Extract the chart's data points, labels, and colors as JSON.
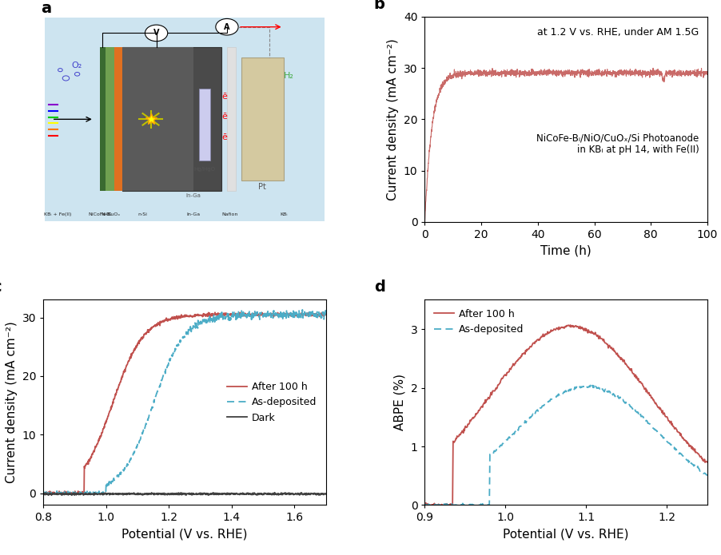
{
  "panel_b": {
    "annotation": "at 1.2 V vs. RHE, under AM 1.5G",
    "label": "NiCoFe-Bᵢ/NiO/CuOₓ/Si Photoanode\nin KBᵢ at pH 14, with Fe(II)",
    "xlabel": "Time (h)",
    "ylabel": "Current density (mA cm⁻²)",
    "xlim": [
      0,
      100
    ],
    "ylim": [
      0,
      40
    ],
    "yticks": [
      0,
      10,
      20,
      30,
      40
    ],
    "xticks": [
      0,
      20,
      40,
      60,
      80,
      100
    ],
    "line_color": "#c0504d",
    "stable_value": 29.0,
    "rise_time": 2.5,
    "noise_amp": 0.3
  },
  "panel_c": {
    "xlabel": "Potential (V vs. RHE)",
    "ylabel": "Current density (mA cm⁻²)",
    "xlim": [
      0.8,
      1.7
    ],
    "ylim": [
      -2,
      33
    ],
    "yticks": [
      0,
      10,
      20,
      30
    ],
    "xticks": [
      0.8,
      1.0,
      1.2,
      1.4,
      1.6
    ],
    "after100h_color": "#c0504d",
    "asdeposited_color": "#4bacc6",
    "dark_color": "#404040",
    "legend": [
      "After 100 h",
      "As-deposited",
      "Dark"
    ],
    "after100h_onset": 0.93,
    "after100h_half": 1.02,
    "asdeposited_onset": 1.0,
    "asdeposited_half": 1.15,
    "plateau": 30.5
  },
  "panel_d": {
    "xlabel": "Potential (V vs. RHE)",
    "ylabel": "ABPE (%)",
    "xlim": [
      0.9,
      1.25
    ],
    "ylim": [
      0,
      3.5
    ],
    "yticks": [
      0,
      1,
      2,
      3
    ],
    "xticks": [
      0.9,
      1.0,
      1.1,
      1.2
    ],
    "after100h_color": "#c0504d",
    "asdeposited_color": "#4bacc6",
    "legend": [
      "After 100 h",
      "As-deposited"
    ],
    "after100h_peak_x": 1.08,
    "after100h_peak_y": 3.05,
    "asdeposited_peak_x": 1.1,
    "asdeposited_peak_y": 2.02
  },
  "panel_a_label": "a",
  "panel_b_label": "b",
  "panel_c_label": "c",
  "panel_d_label": "d",
  "background_color": "#ffffff",
  "label_fontsize": 14,
  "tick_fontsize": 10,
  "axis_label_fontsize": 11
}
